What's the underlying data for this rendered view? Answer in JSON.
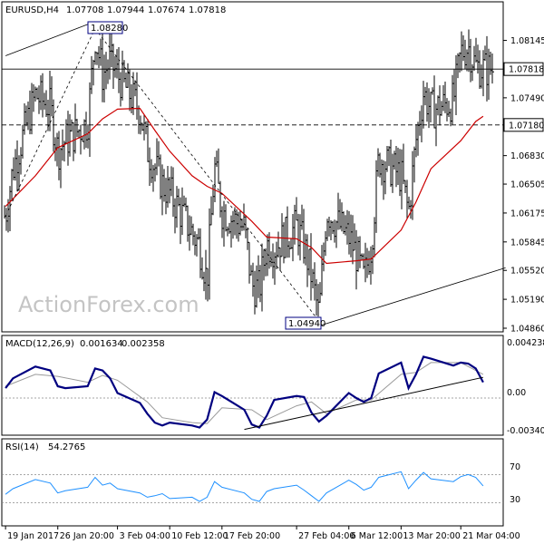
{
  "header": {
    "symbol": "EURUSD,H4",
    "open": "1.07708",
    "high": "1.07944",
    "low": "1.07674",
    "close": "1.07818"
  },
  "watermark": "ActionForex.com",
  "colors": {
    "price_bars": "#000000",
    "ma_line": "#cc0000",
    "macd_line": "#000080",
    "macd_signal": "#9a9a9a",
    "rsi_line": "#1e90ff",
    "guide_lines": "#000000",
    "frame": "#000000",
    "background": "#ffffff"
  },
  "chart_data": [
    {
      "type": "ohlc",
      "name": "price",
      "ylim": [
        1.0486,
        1.0842
      ],
      "y_ticks": [
        "1.08145",
        "1.07490",
        "1.06830",
        "1.06505",
        "1.06175",
        "1.05845",
        "1.05520",
        "1.05190",
        "1.04860"
      ],
      "price_labels": [
        "1.07818",
        "1.07180"
      ],
      "annotations": [
        "1.08280",
        "1.04940"
      ],
      "swing_points": [
        {
          "date": "2017-01-31",
          "price": 1.0828
        },
        {
          "date": "2017-03-02",
          "price": 1.0494
        }
      ],
      "horizontal_levels": [
        1.07818,
        1.0718
      ],
      "close_path": [
        {
          "date": "2017-01-19",
          "close": 1.0614
        },
        {
          "date": "2017-01-20",
          "close": 1.0668
        },
        {
          "date": "2017-01-23",
          "close": 1.0752
        },
        {
          "date": "2017-01-24",
          "close": 1.0745
        },
        {
          "date": "2017-01-25",
          "close": 1.0738
        },
        {
          "date": "2017-01-26",
          "close": 1.0688
        },
        {
          "date": "2017-01-27",
          "close": 1.07
        },
        {
          "date": "2017-01-30",
          "close": 1.072
        },
        {
          "date": "2017-01-31",
          "close": 1.082
        },
        {
          "date": "2017-02-01",
          "close": 1.0775
        },
        {
          "date": "2017-02-02",
          "close": 1.079
        },
        {
          "date": "2017-02-03",
          "close": 1.0775
        },
        {
          "date": "2017-02-06",
          "close": 1.0735
        },
        {
          "date": "2017-02-07",
          "close": 1.069
        },
        {
          "date": "2017-02-08",
          "close": 1.067
        },
        {
          "date": "2017-02-09",
          "close": 1.065
        },
        {
          "date": "2017-02-10",
          "close": 1.064
        },
        {
          "date": "2017-02-13",
          "close": 1.0595
        },
        {
          "date": "2017-02-14",
          "close": 1.058
        },
        {
          "date": "2017-02-15",
          "close": 1.054
        },
        {
          "date": "2017-02-16",
          "close": 1.067
        },
        {
          "date": "2017-02-17",
          "close": 1.062
        },
        {
          "date": "2017-02-20",
          "close": 1.06
        },
        {
          "date": "2017-02-21",
          "close": 1.0535
        },
        {
          "date": "2017-02-22",
          "close": 1.053
        },
        {
          "date": "2017-02-23",
          "close": 1.0582
        },
        {
          "date": "2017-02-24",
          "close": 1.0578
        },
        {
          "date": "2017-02-27",
          "close": 1.0602
        },
        {
          "date": "2017-02-28",
          "close": 1.058
        },
        {
          "date": "2017-03-01",
          "close": 1.0545
        },
        {
          "date": "2017-03-02",
          "close": 1.05
        },
        {
          "date": "2017-03-03",
          "close": 1.062
        },
        {
          "date": "2017-03-06",
          "close": 1.059
        },
        {
          "date": "2017-03-07",
          "close": 1.057
        },
        {
          "date": "2017-03-08",
          "close": 1.0542
        },
        {
          "date": "2017-03-09",
          "close": 1.058
        },
        {
          "date": "2017-03-10",
          "close": 1.068
        },
        {
          "date": "2017-03-13",
          "close": 1.066
        },
        {
          "date": "2017-03-14",
          "close": 1.0618
        },
        {
          "date": "2017-03-15",
          "close": 1.07
        },
        {
          "date": "2017-03-16",
          "close": 1.0755
        },
        {
          "date": "2017-03-17",
          "close": 1.0735
        },
        {
          "date": "2017-03-20",
          "close": 1.0745
        },
        {
          "date": "2017-03-21",
          "close": 1.08
        },
        {
          "date": "2017-03-22",
          "close": 1.0808
        },
        {
          "date": "2017-03-23",
          "close": 1.0785
        },
        {
          "date": "2017-03-24",
          "close": 1.0782
        }
      ],
      "ma_path": [
        {
          "date": "2017-01-19",
          "value": 1.0625
        },
        {
          "date": "2017-01-23",
          "value": 1.066
        },
        {
          "date": "2017-01-26",
          "value": 1.0692
        },
        {
          "date": "2017-01-30",
          "value": 1.0708
        },
        {
          "date": "2017-02-01",
          "value": 1.0725
        },
        {
          "date": "2017-02-03",
          "value": 1.0736
        },
        {
          "date": "2017-02-06",
          "value": 1.0737
        },
        {
          "date": "2017-02-08",
          "value": 1.0712
        },
        {
          "date": "2017-02-10",
          "value": 1.0688
        },
        {
          "date": "2017-02-13",
          "value": 1.066
        },
        {
          "date": "2017-02-15",
          "value": 1.0648
        },
        {
          "date": "2017-02-17",
          "value": 1.064
        },
        {
          "date": "2017-02-21",
          "value": 1.0608
        },
        {
          "date": "2017-02-23",
          "value": 1.059
        },
        {
          "date": "2017-02-27",
          "value": 1.0588
        },
        {
          "date": "2017-03-01",
          "value": 1.0578
        },
        {
          "date": "2017-03-03",
          "value": 1.056
        },
        {
          "date": "2017-03-07",
          "value": 1.0563
        },
        {
          "date": "2017-03-09",
          "value": 1.0565
        },
        {
          "date": "2017-03-13",
          "value": 1.0598
        },
        {
          "date": "2017-03-15",
          "value": 1.063
        },
        {
          "date": "2017-03-17",
          "value": 1.0668
        },
        {
          "date": "2017-03-21",
          "value": 1.07
        },
        {
          "date": "2017-03-23",
          "value": 1.0722
        },
        {
          "date": "2017-03-24",
          "value": 1.0728
        }
      ],
      "trendlines": [
        {
          "from": {
            "date": "2017-01-19",
            "price": 1.0797
          },
          "to": {
            "date": "2017-01-31",
            "price": 1.0836
          }
        },
        {
          "from": {
            "date": "2017-01-19",
            "price": 1.0614
          },
          "to": {
            "date": "2017-01-31",
            "price": 1.0828
          }
        },
        {
          "from": {
            "date": "2017-01-31",
            "price": 1.0828
          },
          "to": {
            "date": "2017-03-02",
            "price": 1.0494
          }
        },
        {
          "from": {
            "date": "2017-03-01",
            "price": 1.0486
          },
          "to": {
            "date": "2017-03-27",
            "price": 1.0555
          }
        }
      ]
    },
    {
      "type": "line",
      "name": "MACD(12,26,9)",
      "values_header": [
        "0.001634",
        "0.002358"
      ],
      "y_ticks": [
        "0.004238",
        "0.00",
        "-0.003404"
      ],
      "ylim": [
        -0.0036,
        0.0047
      ],
      "zero_line": true,
      "series": [
        {
          "name": "MACD",
          "values": [
            {
              "date": "2017-01-19",
              "value": 0.001
            },
            {
              "date": "2017-01-20",
              "value": 0.002
            },
            {
              "date": "2017-01-23",
              "value": 0.0032
            },
            {
              "date": "2017-01-25",
              "value": 0.0028
            },
            {
              "date": "2017-01-26",
              "value": 0.0012
            },
            {
              "date": "2017-01-27",
              "value": 0.001
            },
            {
              "date": "2017-01-30",
              "value": 0.0012
            },
            {
              "date": "2017-01-31",
              "value": 0.003
            },
            {
              "date": "2017-02-01",
              "value": 0.0028
            },
            {
              "date": "2017-02-02",
              "value": 0.002
            },
            {
              "date": "2017-02-03",
              "value": 0.0005
            },
            {
              "date": "2017-02-06",
              "value": -0.0005
            },
            {
              "date": "2017-02-07",
              "value": -0.0016
            },
            {
              "date": "2017-02-08",
              "value": -0.0025
            },
            {
              "date": "2017-02-09",
              "value": -0.0028
            },
            {
              "date": "2017-02-10",
              "value": -0.0025
            },
            {
              "date": "2017-02-13",
              "value": -0.0028
            },
            {
              "date": "2017-02-14",
              "value": -0.003
            },
            {
              "date": "2017-02-15",
              "value": -0.0022
            },
            {
              "date": "2017-02-16",
              "value": 0.0006
            },
            {
              "date": "2017-02-17",
              "value": 0.0002
            },
            {
              "date": "2017-02-20",
              "value": -0.0012
            },
            {
              "date": "2017-02-21",
              "value": -0.0027
            },
            {
              "date": "2017-02-22",
              "value": -0.003
            },
            {
              "date": "2017-02-23",
              "value": -0.0018
            },
            {
              "date": "2017-02-24",
              "value": -0.0002
            },
            {
              "date": "2017-02-27",
              "value": 0.0002
            },
            {
              "date": "2017-02-28",
              "value": 0.0001
            },
            {
              "date": "2017-03-01",
              "value": -0.0015
            },
            {
              "date": "2017-03-02",
              "value": -0.0024
            },
            {
              "date": "2017-03-03",
              "value": -0.0018
            },
            {
              "date": "2017-03-06",
              "value": 0.0005
            },
            {
              "date": "2017-03-07",
              "value": 0.0
            },
            {
              "date": "2017-03-08",
              "value": -0.0004
            },
            {
              "date": "2017-03-09",
              "value": 0.0
            },
            {
              "date": "2017-03-10",
              "value": 0.0025
            },
            {
              "date": "2017-03-13",
              "value": 0.0036
            },
            {
              "date": "2017-03-14",
              "value": 0.001
            },
            {
              "date": "2017-03-15",
              "value": 0.0024
            },
            {
              "date": "2017-03-16",
              "value": 0.0042
            },
            {
              "date": "2017-03-17",
              "value": 0.004
            },
            {
              "date": "2017-03-20",
              "value": 0.0033
            },
            {
              "date": "2017-03-21",
              "value": 0.0036
            },
            {
              "date": "2017-03-22",
              "value": 0.0035
            },
            {
              "date": "2017-03-23",
              "value": 0.003
            },
            {
              "date": "2017-03-24",
              "value": 0.0016
            }
          ]
        },
        {
          "name": "Signal",
          "values": [
            {
              "date": "2017-01-19",
              "value": 0.0012
            },
            {
              "date": "2017-01-23",
              "value": 0.0024
            },
            {
              "date": "2017-01-26",
              "value": 0.0022
            },
            {
              "date": "2017-01-30",
              "value": 0.0016
            },
            {
              "date": "2017-02-01",
              "value": 0.0023
            },
            {
              "date": "2017-02-03",
              "value": 0.0018
            },
            {
              "date": "2017-02-07",
              "value": -0.0004
            },
            {
              "date": "2017-02-09",
              "value": -0.002
            },
            {
              "date": "2017-02-13",
              "value": -0.0025
            },
            {
              "date": "2017-02-15",
              "value": -0.0026
            },
            {
              "date": "2017-02-17",
              "value": -0.001
            },
            {
              "date": "2017-02-21",
              "value": -0.0012
            },
            {
              "date": "2017-02-23",
              "value": -0.0022
            },
            {
              "date": "2017-02-27",
              "value": -0.0008
            },
            {
              "date": "2017-03-01",
              "value": -0.0004
            },
            {
              "date": "2017-03-03",
              "value": -0.0016
            },
            {
              "date": "2017-03-07",
              "value": -0.0002
            },
            {
              "date": "2017-03-09",
              "value": -0.0002
            },
            {
              "date": "2017-03-13",
              "value": 0.0024
            },
            {
              "date": "2017-03-15",
              "value": 0.0026
            },
            {
              "date": "2017-03-17",
              "value": 0.0036
            },
            {
              "date": "2017-03-21",
              "value": 0.0036
            },
            {
              "date": "2017-03-24",
              "value": 0.0024
            }
          ]
        }
      ],
      "trendline": {
        "from": {
          "date": "2017-02-20",
          "value": -0.0032
        },
        "to": {
          "date": "2017-03-24",
          "value": 0.0021
        }
      }
    },
    {
      "type": "line",
      "name": "RSI(14)",
      "value_header": "54.2765",
      "y_ticks": [
        "70",
        "30"
      ],
      "ylim": [
        0,
        100
      ],
      "levels": [
        70,
        30
      ],
      "series": [
        {
          "name": "RSI",
          "values": [
            {
              "date": "2017-01-19",
              "value": 42
            },
            {
              "date": "2017-01-20",
              "value": 50
            },
            {
              "date": "2017-01-23",
              "value": 63
            },
            {
              "date": "2017-01-25",
              "value": 58
            },
            {
              "date": "2017-01-26",
              "value": 44
            },
            {
              "date": "2017-01-27",
              "value": 47
            },
            {
              "date": "2017-01-30",
              "value": 52
            },
            {
              "date": "2017-01-31",
              "value": 66
            },
            {
              "date": "2017-02-01",
              "value": 55
            },
            {
              "date": "2017-02-02",
              "value": 58
            },
            {
              "date": "2017-02-03",
              "value": 50
            },
            {
              "date": "2017-02-06",
              "value": 44
            },
            {
              "date": "2017-02-07",
              "value": 38
            },
            {
              "date": "2017-02-08",
              "value": 40
            },
            {
              "date": "2017-02-09",
              "value": 43
            },
            {
              "date": "2017-02-10",
              "value": 36
            },
            {
              "date": "2017-02-13",
              "value": 38
            },
            {
              "date": "2017-02-14",
              "value": 32
            },
            {
              "date": "2017-02-15",
              "value": 38
            },
            {
              "date": "2017-02-16",
              "value": 60
            },
            {
              "date": "2017-02-17",
              "value": 52
            },
            {
              "date": "2017-02-20",
              "value": 44
            },
            {
              "date": "2017-02-21",
              "value": 35
            },
            {
              "date": "2017-02-22",
              "value": 32
            },
            {
              "date": "2017-02-23",
              "value": 46
            },
            {
              "date": "2017-02-24",
              "value": 50
            },
            {
              "date": "2017-02-27",
              "value": 55
            },
            {
              "date": "2017-02-28",
              "value": 48
            },
            {
              "date": "2017-03-01",
              "value": 40
            },
            {
              "date": "2017-03-02",
              "value": 32
            },
            {
              "date": "2017-03-03",
              "value": 44
            },
            {
              "date": "2017-03-06",
              "value": 62
            },
            {
              "date": "2017-03-07",
              "value": 56
            },
            {
              "date": "2017-03-08",
              "value": 48
            },
            {
              "date": "2017-03-09",
              "value": 52
            },
            {
              "date": "2017-03-10",
              "value": 66
            },
            {
              "date": "2017-03-13",
              "value": 74
            },
            {
              "date": "2017-03-14",
              "value": 50
            },
            {
              "date": "2017-03-15",
              "value": 62
            },
            {
              "date": "2017-03-16",
              "value": 73
            },
            {
              "date": "2017-03-17",
              "value": 64
            },
            {
              "date": "2017-03-20",
              "value": 60
            },
            {
              "date": "2017-03-21",
              "value": 67
            },
            {
              "date": "2017-03-22",
              "value": 70
            },
            {
              "date": "2017-03-23",
              "value": 66
            },
            {
              "date": "2017-03-24",
              "value": 54
            }
          ]
        }
      ]
    }
  ],
  "x_axis": {
    "labels": [
      "19 Jan 2017",
      "26 Jan 20:00",
      "3 Feb 04:00",
      "10 Feb 12:00",
      "17 Feb 20:00",
      "27 Feb 04:00",
      "6 Mar 12:00",
      "13 Mar 20:00",
      "21 Mar 04:00"
    ],
    "label_dates": [
      "2017-01-19",
      "2017-01-26",
      "2017-02-03",
      "2017-02-10",
      "2017-02-17",
      "2017-02-27",
      "2017-03-06",
      "2017-03-13",
      "2017-03-21"
    ]
  }
}
